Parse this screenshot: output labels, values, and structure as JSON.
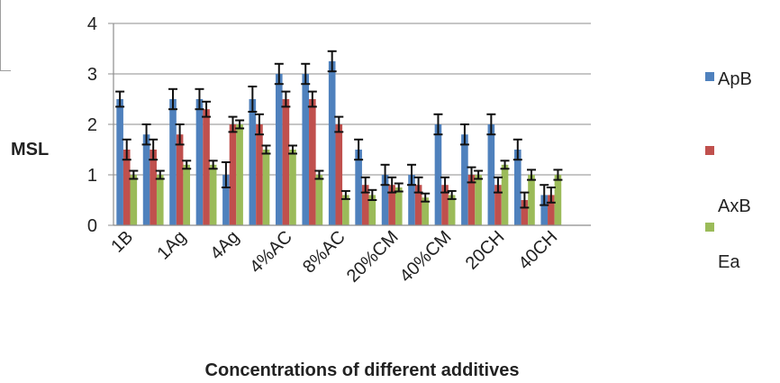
{
  "chart_data": {
    "type": "bar",
    "title": "",
    "xlabel": "Concentrations of different additives",
    "ylabel": "MSL",
    "ylim": [
      0,
      4
    ],
    "yticks": [
      0,
      1,
      2,
      3,
      4
    ],
    "grid": true,
    "legend_position": "right",
    "categories": [
      "1B",
      "",
      "1Ag",
      "",
      "4Ag",
      "",
      "4%AC",
      "",
      "8%AC",
      "",
      "20%CM",
      "",
      "40%CM",
      "",
      "20CH",
      "",
      "40CH",
      ""
    ],
    "series": [
      {
        "name": "ApB",
        "color": "#4f81bd",
        "values": [
          2.5,
          1.8,
          2.5,
          2.5,
          1.0,
          2.5,
          3.0,
          3.0,
          3.25,
          1.5,
          1.0,
          1.0,
          2.0,
          1.8,
          2.0,
          1.5,
          0.6,
          null
        ],
        "errors": [
          0.15,
          0.2,
          0.2,
          0.2,
          0.25,
          0.25,
          0.2,
          0.2,
          0.2,
          0.2,
          0.2,
          0.2,
          0.2,
          0.2,
          0.2,
          0.2,
          0.2,
          null
        ]
      },
      {
        "name": "AxB",
        "color": "#c0504d",
        "values": [
          1.5,
          1.5,
          1.8,
          2.3,
          2.0,
          2.0,
          2.5,
          2.5,
          2.0,
          0.8,
          0.8,
          0.8,
          0.8,
          1.0,
          0.8,
          0.5,
          0.6,
          null
        ],
        "errors": [
          0.2,
          0.2,
          0.2,
          0.15,
          0.15,
          0.2,
          0.15,
          0.15,
          0.15,
          0.15,
          0.15,
          0.15,
          0.15,
          0.15,
          0.15,
          0.15,
          0.15,
          null
        ]
      },
      {
        "name": "Ea",
        "color": "#9bbb59",
        "values": [
          1.0,
          1.0,
          1.2,
          1.2,
          2.0,
          1.5,
          1.5,
          1.0,
          0.6,
          0.6,
          0.75,
          0.55,
          0.6,
          1.0,
          1.2,
          1.0,
          1.0,
          null
        ],
        "errors": [
          0.08,
          0.08,
          0.08,
          0.08,
          0.08,
          0.08,
          0.08,
          0.08,
          0.08,
          0.1,
          0.08,
          0.08,
          0.08,
          0.08,
          0.08,
          0.1,
          0.1,
          null
        ]
      }
    ]
  }
}
